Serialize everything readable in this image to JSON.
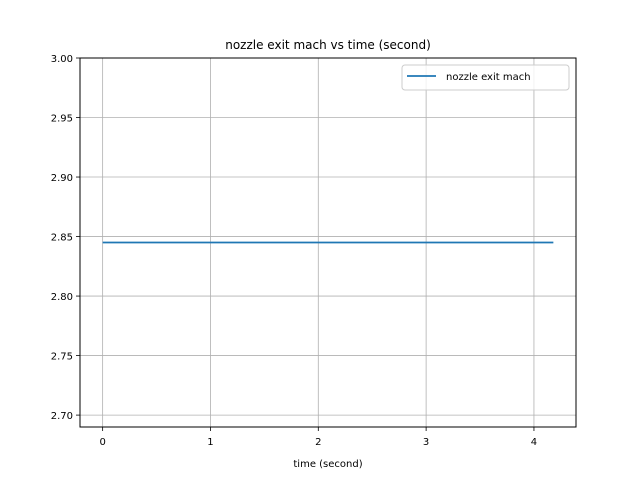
{
  "chart_data": {
    "type": "line",
    "title": "nozzle exit mach vs time (second)",
    "xlabel": "time (second)",
    "ylabel": "",
    "xlim": [
      -0.21,
      4.39
    ],
    "ylim": [
      2.69,
      3.0
    ],
    "xticks": [
      0,
      1,
      2,
      3,
      4
    ],
    "yticks": [
      2.7,
      2.75,
      2.8,
      2.85,
      2.9,
      2.95,
      3.0
    ],
    "xtick_labels": [
      "0",
      "1",
      "2",
      "3",
      "4"
    ],
    "ytick_labels": [
      "2.70",
      "2.75",
      "2.80",
      "2.85",
      "2.90",
      "2.95",
      "3.00"
    ],
    "grid": true,
    "legend_position": "top-right",
    "series": [
      {
        "name": "nozzle exit mach",
        "color": "#1f77b4",
        "x": [
          0,
          4.18
        ],
        "y": [
          2.845,
          2.845
        ]
      }
    ]
  }
}
